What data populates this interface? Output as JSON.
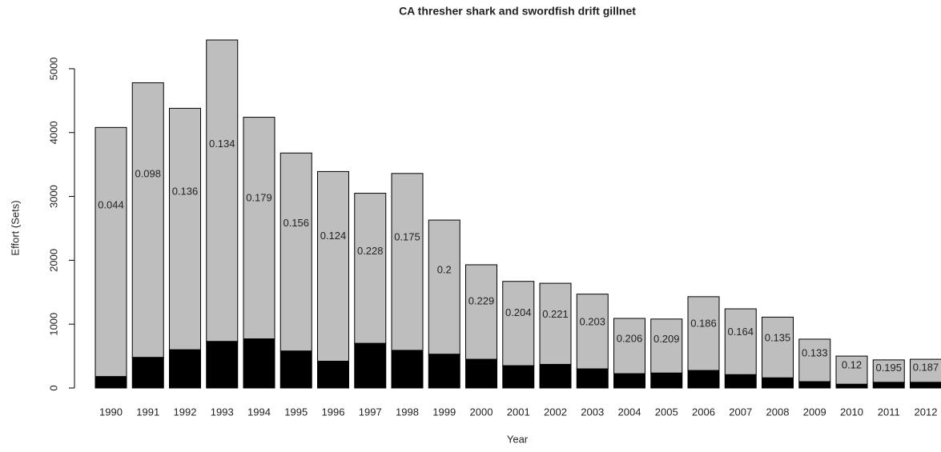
{
  "chart_data": {
    "type": "bar",
    "stacked": true,
    "title": "CA thresher shark and swordfish drift gillnet",
    "x_label": "Year",
    "y_label": "Effort (Sets)",
    "categories": [
      "1990",
      "1991",
      "1992",
      "1993",
      "1994",
      "1995",
      "1996",
      "1997",
      "1998",
      "1999",
      "2000",
      "2001",
      "2002",
      "2003",
      "2004",
      "2005",
      "2006",
      "2007",
      "2008",
      "2009",
      "2010",
      "2011",
      "2012"
    ],
    "series": [
      {
        "color": "#000000",
        "values": [
          180,
          480,
          600,
          730,
          770,
          580,
          420,
          700,
          590,
          530,
          450,
          350,
          370,
          300,
          225,
          235,
          275,
          210,
          160,
          100,
          60,
          90,
          90
        ]
      },
      {
        "color": "#bebebe",
        "values": [
          3900,
          4300,
          3780,
          4720,
          3470,
          3100,
          2970,
          2350,
          2770,
          2100,
          1480,
          1320,
          1270,
          1170,
          865,
          845,
          1155,
          1030,
          950,
          665,
          440,
          350,
          360
        ]
      }
    ],
    "annotations": [
      "0.044",
      "0.098",
      "0.136",
      "0.134",
      "0.179",
      "0.156",
      "0.124",
      "0.228",
      "0.175",
      "0.2",
      "0.229",
      "0.204",
      "0.221",
      "0.203",
      "0.206",
      "0.209",
      "0.186",
      "0.164",
      "0.135",
      "0.133",
      "0.12",
      "0.195",
      "0.187"
    ],
    "ylim": [
      0,
      5500
    ],
    "yticks": [
      0,
      1000,
      2000,
      3000,
      4000,
      5000
    ]
  }
}
